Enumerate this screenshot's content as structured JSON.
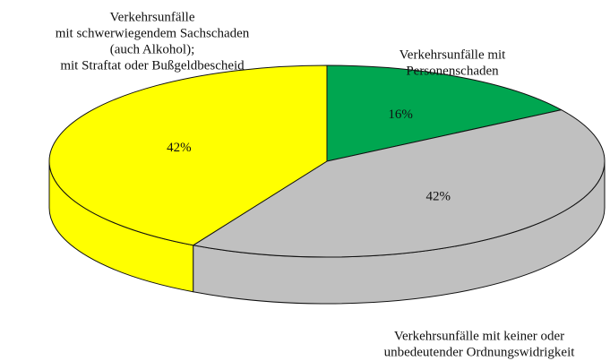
{
  "chart_data": {
    "type": "pie",
    "style": "3d",
    "categories": [
      [
        "Verkehrsunfälle mit",
        "Personenschaden"
      ],
      [
        "Verkehrsunfälle mit keiner oder",
        "unbedeutender Ordnungswidrigkeit"
      ],
      [
        "Verkehrsunfälle",
        "mit schwerwiegendem Sachschaden",
        "(auch Alkohol);",
        "mit Straftat oder Bußgeldbescheid"
      ]
    ],
    "values": [
      16,
      42,
      42
    ],
    "value_labels": [
      "16%",
      "42%",
      "42%"
    ],
    "colors": [
      "#00a650",
      "#c0c0c0",
      "#ffff00"
    ]
  }
}
